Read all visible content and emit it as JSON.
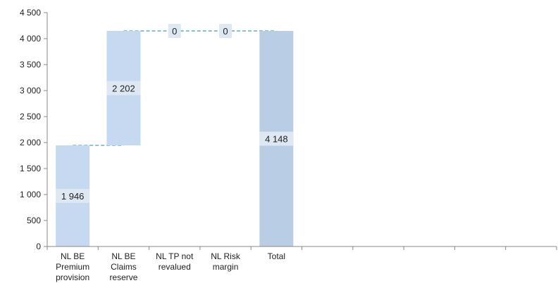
{
  "chart_data": {
    "type": "bar",
    "subtype": "waterfall",
    "title": "",
    "xlabel": "",
    "ylabel": "",
    "ylim": [
      0,
      4500
    ],
    "yticks": [
      0,
      500,
      1000,
      1500,
      2000,
      2500,
      3000,
      3500,
      4000,
      4500
    ],
    "ytick_labels": [
      "0",
      "500",
      "1 000",
      "1 500",
      "2 000",
      "2 500",
      "3 000",
      "3 500",
      "4 000",
      "4 500"
    ],
    "grid": false,
    "legend": "none",
    "categories": [
      [
        "NL BE",
        "Premium",
        "provision"
      ],
      [
        "NL BE",
        "Claims",
        "reserve"
      ],
      [
        "NL TP not",
        "revalued"
      ],
      [
        "NL Risk",
        "margin"
      ],
      [
        "Total"
      ],
      [],
      [],
      [],
      [],
      []
    ],
    "bars": [
      {
        "base": 0,
        "value": 1946,
        "label": "1 946",
        "kind": "step"
      },
      {
        "base": 1946,
        "value": 2202,
        "label": "2 202",
        "kind": "step"
      },
      {
        "base": 4148,
        "value": 0,
        "label": "0",
        "kind": "step"
      },
      {
        "base": 4148,
        "value": 0,
        "label": "0",
        "kind": "step"
      },
      {
        "base": 0,
        "value": 4148,
        "label": "4 148",
        "kind": "total"
      }
    ],
    "colors": {
      "step": "#c6d9f1",
      "total": "#b9cde5",
      "connector": "#4aa8b0",
      "label_box": "#dde8f3",
      "axis": "#888888"
    }
  }
}
